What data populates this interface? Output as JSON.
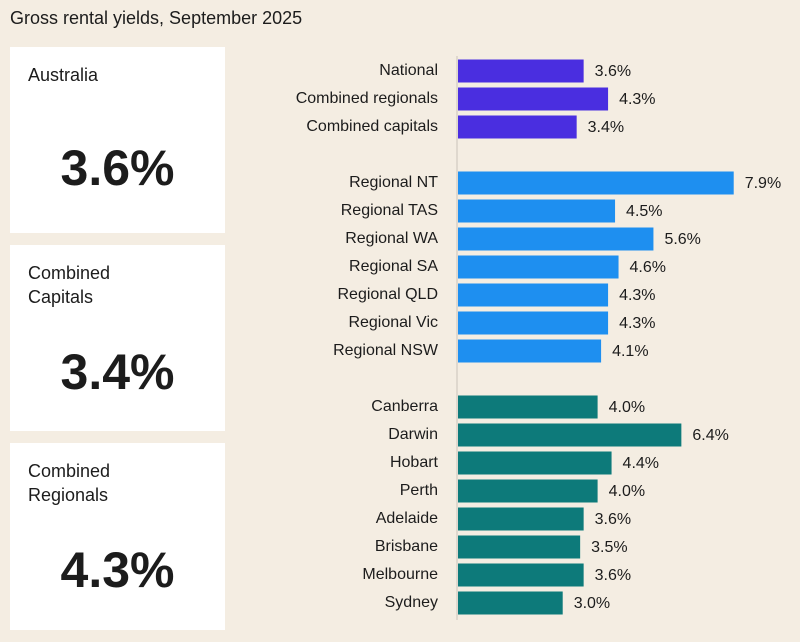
{
  "title": "Gross rental yields, September 2025",
  "cards": [
    {
      "title": "Australia",
      "value": "3.6%"
    },
    {
      "title": "Combined Capitals",
      "value": "3.4%"
    },
    {
      "title": "Combined Regionals",
      "value": "4.3%"
    }
  ],
  "chart_data": {
    "type": "hbar",
    "series": [
      {
        "color": "#4a2ee0",
        "categories": [
          "National",
          "Combined regionals",
          "Combined capitals"
        ],
        "values": [
          3.6,
          4.3,
          3.4
        ],
        "value_labels": [
          "3.6%",
          "4.3%",
          "3.4%"
        ]
      },
      {
        "color": "#1e8ff0",
        "categories": [
          "Regional NT",
          "Regional TAS",
          "Regional WA",
          "Regional SA",
          "Regional QLD",
          "Regional Vic",
          "Regional NSW"
        ],
        "values": [
          7.9,
          4.5,
          5.6,
          4.6,
          4.3,
          4.3,
          4.1
        ],
        "value_labels": [
          "7.9%",
          "4.5%",
          "5.6%",
          "4.6%",
          "4.3%",
          "4.3%",
          "4.1%"
        ]
      },
      {
        "color": "#0d7a7a",
        "categories": [
          "Canberra",
          "Darwin",
          "Hobart",
          "Perth",
          "Adelaide",
          "Brisbane",
          "Melbourne",
          "Sydney"
        ],
        "values": [
          4.0,
          6.4,
          4.4,
          4.0,
          3.6,
          3.5,
          3.6,
          3.0
        ],
        "value_labels": [
          "4.0%",
          "6.4%",
          "4.4%",
          "4.0%",
          "3.6%",
          "3.5%",
          "3.6%",
          "3.0%"
        ]
      }
    ]
  }
}
